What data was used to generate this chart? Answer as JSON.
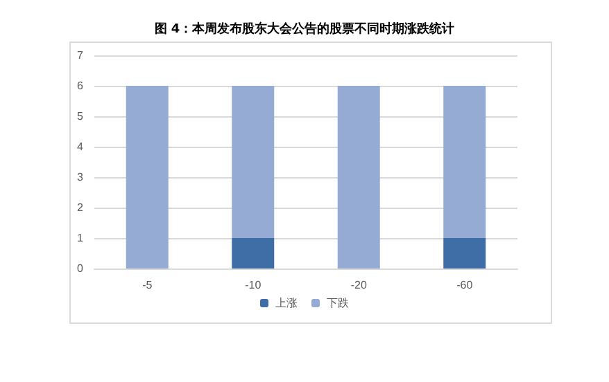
{
  "chart_data": {
    "type": "bar",
    "title": "图 4：本周发布股东大会公告的股票不同时期涨跌统计",
    "categories": [
      "-5",
      "-10",
      "-20",
      "-60"
    ],
    "stacked": true,
    "series": [
      {
        "name": "上涨",
        "color": "#3f6ea7",
        "values": [
          0,
          1,
          0,
          1
        ]
      },
      {
        "name": "下跌",
        "color": "#95abd3",
        "values": [
          6,
          5,
          6,
          5
        ]
      }
    ],
    "ylim": [
      0,
      7
    ],
    "yticks": [
      0,
      1,
      2,
      3,
      4,
      5,
      6,
      7
    ],
    "grid": "y",
    "legend": "bottom"
  }
}
